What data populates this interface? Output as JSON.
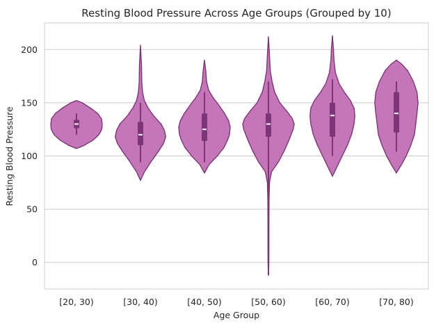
{
  "chart_data": {
    "type": "violin",
    "title": "Resting Blood Pressure Across Age Groups (Grouped by 10)",
    "xlabel": "Age Group",
    "ylabel": "Resting Blood Pressure",
    "categories": [
      "[20, 30)",
      "[30, 40)",
      "[40, 50)",
      "[50, 60)",
      "[60, 70)",
      "[70, 80)"
    ],
    "ylim": [
      -25,
      225
    ],
    "yticks": [
      0,
      50,
      100,
      150,
      200
    ],
    "grid": "horizontal",
    "colors": {
      "fill": "#c476b9",
      "edge": "#7d3579",
      "box": "#7d3579",
      "median": "#ffffff",
      "grid": "#cccccc",
      "frame": "#cccccc"
    },
    "groups": [
      {
        "category": "[20, 30)",
        "whisker_low": 120,
        "q1": 126,
        "median": 130,
        "q3": 134,
        "whisker_high": 140,
        "violin": [
          [
            107,
            0.0
          ],
          [
            110,
            0.3
          ],
          [
            115,
            0.65
          ],
          [
            120,
            0.87
          ],
          [
            125,
            0.98
          ],
          [
            130,
            1.0
          ],
          [
            135,
            0.97
          ],
          [
            140,
            0.82
          ],
          [
            145,
            0.55
          ],
          [
            150,
            0.22
          ],
          [
            152,
            0.0
          ]
        ]
      },
      {
        "category": "[30, 40)",
        "whisker_low": 94,
        "q1": 110,
        "median": 120,
        "q3": 132,
        "whisker_high": 150,
        "violin": [
          [
            77,
            0.0
          ],
          [
            85,
            0.15
          ],
          [
            95,
            0.42
          ],
          [
            105,
            0.72
          ],
          [
            112,
            0.9
          ],
          [
            118,
            0.98
          ],
          [
            124,
            0.93
          ],
          [
            130,
            0.8
          ],
          [
            138,
            0.5
          ],
          [
            145,
            0.3
          ],
          [
            152,
            0.15
          ],
          [
            160,
            0.08
          ],
          [
            170,
            0.05
          ],
          [
            185,
            0.04
          ],
          [
            204,
            0.0
          ]
        ]
      },
      {
        "category": "[40, 50)",
        "whisker_low": 94,
        "q1": 114,
        "median": 125,
        "q3": 140,
        "whisker_high": 160,
        "violin": [
          [
            84,
            0.0
          ],
          [
            92,
            0.18
          ],
          [
            100,
            0.5
          ],
          [
            108,
            0.76
          ],
          [
            115,
            0.9
          ],
          [
            120,
            0.97
          ],
          [
            127,
            1.0
          ],
          [
            133,
            0.94
          ],
          [
            140,
            0.78
          ],
          [
            148,
            0.55
          ],
          [
            155,
            0.33
          ],
          [
            162,
            0.16
          ],
          [
            170,
            0.08
          ],
          [
            180,
            0.05
          ],
          [
            190,
            0.0
          ]
        ]
      },
      {
        "category": "[50, 60)",
        "whisker_low": -12,
        "q1": 118,
        "median": 130,
        "q3": 140,
        "whisker_high": 170,
        "violin": [
          [
            -12,
            0.0
          ],
          [
            0,
            0.015
          ],
          [
            20,
            0.02
          ],
          [
            40,
            0.02
          ],
          [
            60,
            0.025
          ],
          [
            75,
            0.04
          ],
          [
            85,
            0.12
          ],
          [
            95,
            0.4
          ],
          [
            105,
            0.62
          ],
          [
            115,
            0.8
          ],
          [
            125,
            0.96
          ],
          [
            130,
            1.0
          ],
          [
            135,
            0.93
          ],
          [
            142,
            0.72
          ],
          [
            150,
            0.44
          ],
          [
            160,
            0.24
          ],
          [
            170,
            0.14
          ],
          [
            180,
            0.07
          ],
          [
            195,
            0.04
          ],
          [
            212,
            0.0
          ]
        ]
      },
      {
        "category": "[60, 70)",
        "whisker_low": 100,
        "q1": 118,
        "median": 138,
        "q3": 150,
        "whisker_high": 172,
        "violin": [
          [
            81,
            0.0
          ],
          [
            90,
            0.18
          ],
          [
            100,
            0.38
          ],
          [
            110,
            0.58
          ],
          [
            120,
            0.74
          ],
          [
            130,
            0.84
          ],
          [
            138,
            0.87
          ],
          [
            145,
            0.84
          ],
          [
            152,
            0.7
          ],
          [
            160,
            0.46
          ],
          [
            168,
            0.26
          ],
          [
            178,
            0.12
          ],
          [
            190,
            0.06
          ],
          [
            200,
            0.04
          ],
          [
            213,
            0.0
          ]
        ]
      },
      {
        "category": "[70, 80)",
        "whisker_low": 104,
        "q1": 122,
        "median": 140,
        "q3": 160,
        "whisker_high": 170,
        "violin": [
          [
            84,
            0.0
          ],
          [
            92,
            0.2
          ],
          [
            100,
            0.38
          ],
          [
            110,
            0.56
          ],
          [
            120,
            0.7
          ],
          [
            130,
            0.75
          ],
          [
            140,
            0.8
          ],
          [
            150,
            0.84
          ],
          [
            160,
            0.8
          ],
          [
            170,
            0.66
          ],
          [
            180,
            0.44
          ],
          [
            186,
            0.22
          ],
          [
            190,
            0.0
          ]
        ]
      }
    ]
  }
}
